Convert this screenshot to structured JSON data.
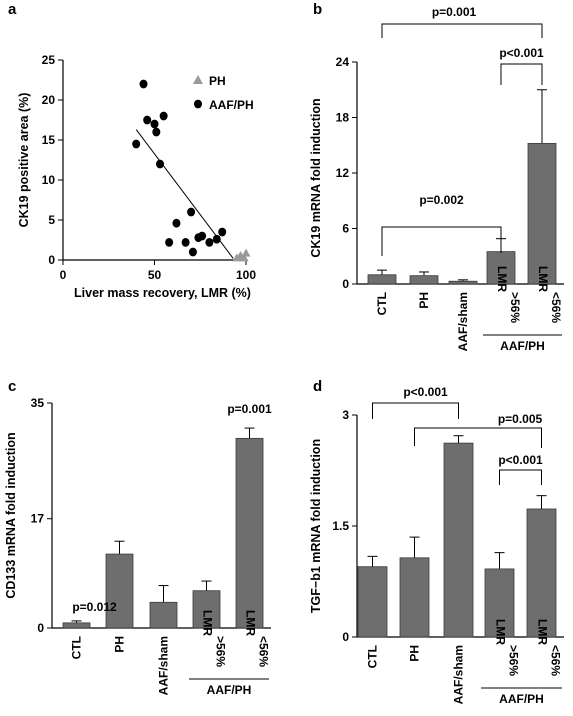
{
  "chart_data": [
    {
      "panel": "a",
      "type": "scatter",
      "xlabel": "Liver mass recovery, LMR (%)",
      "ylabel": "CK19 positive area (%)",
      "xlim": [
        0,
        100
      ],
      "ylim": [
        0,
        25
      ],
      "x_ticks": [
        "0",
        "50",
        "100"
      ],
      "y_ticks": [
        "0",
        "5",
        "10",
        "15",
        "20",
        "25"
      ],
      "legend_position": "top-right",
      "series": [
        {
          "name": "PH",
          "marker": "triangle",
          "color": "#9a9a9a",
          "points": [
            [
              95,
              0.2
            ],
            [
              97,
              0.5
            ],
            [
              99,
              0.2
            ],
            [
              100,
              0.8
            ]
          ]
        },
        {
          "name": "AAF/PH",
          "marker": "circle",
          "color": "#000000",
          "points": [
            [
              40,
              14.5
            ],
            [
              44,
              22
            ],
            [
              46,
              17.5
            ],
            [
              50,
              17
            ],
            [
              51,
              16
            ],
            [
              53,
              12
            ],
            [
              55,
              18
            ],
            [
              58,
              2.2
            ],
            [
              62,
              4.6
            ],
            [
              67,
              2.2
            ],
            [
              70,
              6
            ],
            [
              71,
              1
            ],
            [
              74,
              2.8
            ],
            [
              76,
              3
            ],
            [
              80,
              2.2
            ],
            [
              84,
              2.6
            ],
            [
              87,
              3.5
            ]
          ]
        }
      ],
      "trendline": [
        [
          40,
          16.3
        ],
        [
          93,
          0.2
        ]
      ]
    },
    {
      "panel": "b",
      "type": "bar",
      "ylabel": "CK19 mRNA fold induction",
      "ylim": [
        0,
        24
      ],
      "y_ticks": [
        "0",
        "6",
        "12",
        "18",
        "24"
      ],
      "categories": [
        "CTL",
        "PH",
        "AAF/sham",
        "LMR >56%",
        "LMR <56%"
      ],
      "category_lines": [
        [
          "CTL"
        ],
        [
          "PH"
        ],
        [
          "AAF/sham"
        ],
        [
          "LMR",
          ">56%"
        ],
        [
          "LMR",
          "<56%"
        ]
      ],
      "group_label": "AAF/PH",
      "values": [
        1.0,
        0.9,
        0.3,
        3.5,
        15.2
      ],
      "errors": [
        0.5,
        0.4,
        0.15,
        1.4,
        5.8
      ],
      "significance": [
        {
          "from": 0,
          "to": 3,
          "label": "p=0.002"
        },
        {
          "from": 3,
          "to": 4,
          "label": "p<0.001"
        },
        {
          "from": 0,
          "to": 4,
          "label": "p=0.001"
        }
      ]
    },
    {
      "panel": "c",
      "type": "bar",
      "ylabel": "CD133 mRNA fold induction",
      "ylim": [
        0,
        35
      ],
      "y_ticks": [
        "0",
        "17",
        "35"
      ],
      "categories": [
        "CTL",
        "PH",
        "AAF/sham",
        "LMR >56%",
        "LMR <56%"
      ],
      "category_lines": [
        [
          "CTL"
        ],
        [
          "PH"
        ],
        [
          "AAF/sham"
        ],
        [
          "LMR",
          ">56%"
        ],
        [
          "LMR",
          "<56%"
        ]
      ],
      "group_label": "AAF/PH",
      "values": [
        0.8,
        11.5,
        4.0,
        5.8,
        29.5
      ],
      "errors": [
        0.3,
        2.0,
        2.6,
        1.5,
        1.6
      ],
      "bar_labels": [
        {
          "index": 0,
          "label": "p=0.012"
        },
        {
          "index": 4,
          "label": "p=0.001"
        }
      ]
    },
    {
      "panel": "d",
      "type": "bar",
      "ylabel": "TGF−b1 mRNA fold induction",
      "ylim": [
        0,
        3
      ],
      "y_ticks": [
        "0",
        "1.5",
        "3"
      ],
      "categories": [
        "CTL",
        "PH",
        "AAF/sham",
        "LMR >56%",
        "LMR <56%"
      ],
      "category_lines": [
        [
          "CTL"
        ],
        [
          "PH"
        ],
        [
          "AAF/sham"
        ],
        [
          "LMR",
          ">56%"
        ],
        [
          "LMR",
          "<56%"
        ]
      ],
      "group_label": "AAF/PH",
      "values": [
        0.95,
        1.07,
        2.62,
        0.92,
        1.73
      ],
      "errors": [
        0.14,
        0.28,
        0.1,
        0.22,
        0.18
      ],
      "significance": [
        {
          "from": 3,
          "to": 4,
          "label": "p<0.001"
        },
        {
          "from": 1,
          "to": 4,
          "label": "p=0.005"
        },
        {
          "from": 0,
          "to": 2,
          "label": "p<0.001"
        }
      ]
    }
  ]
}
